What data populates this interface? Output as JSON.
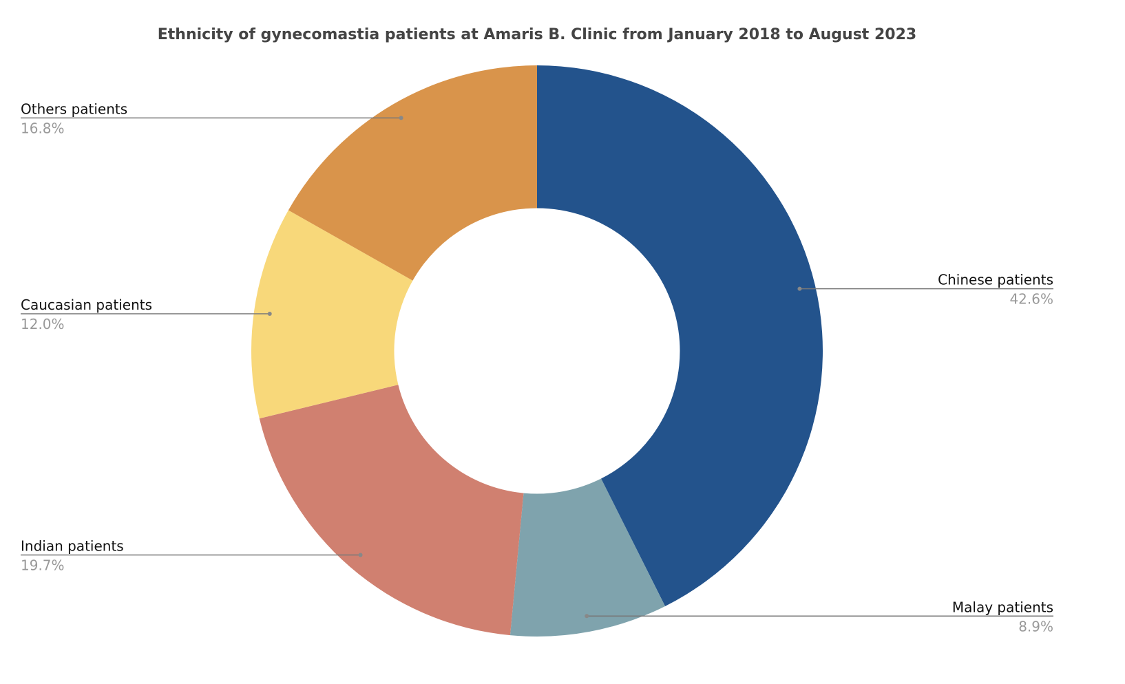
{
  "chart_data": {
    "type": "pie",
    "title": "Ethnicity of gynecomastia patients at Amaris B. Clinic from January 2018 to August 2023",
    "categories": [
      "Chinese patients",
      "Malay patients",
      "Indian patients",
      "Caucasian patients",
      "Others patients"
    ],
    "values": [
      42.6,
      8.9,
      19.7,
      12.0,
      16.8
    ],
    "value_labels": [
      "42.6%",
      "8.9%",
      "19.7%",
      "12.0%",
      "16.8%"
    ],
    "colors": [
      "#23538c",
      "#7fa3ad",
      "#d08070",
      "#f8d87a",
      "#d9944b"
    ],
    "hole": 0.5
  }
}
